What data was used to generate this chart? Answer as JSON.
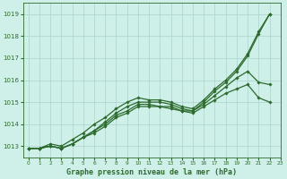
{
  "title": "Graphe pression niveau de la mer (hPa)",
  "bg_color": "#cef0e8",
  "grid_color": "#aad4cc",
  "line_color": "#2d6a2d",
  "xlim": [
    -0.5,
    23
  ],
  "ylim": [
    1012.5,
    1019.5
  ],
  "yticks": [
    1013,
    1014,
    1015,
    1016,
    1017,
    1018,
    1019
  ],
  "xticks": [
    0,
    1,
    2,
    3,
    4,
    5,
    6,
    7,
    8,
    9,
    10,
    11,
    12,
    13,
    14,
    15,
    16,
    17,
    18,
    19,
    20,
    21,
    22,
    23
  ],
  "series": [
    {
      "x": [
        0,
        1,
        2,
        3,
        4,
        5,
        6,
        7,
        8,
        9,
        10,
        11,
        12,
        13,
        14,
        15,
        16,
        17,
        18,
        19,
        20,
        21,
        22
      ],
      "y": [
        1012.9,
        1012.9,
        1013.0,
        1012.9,
        1013.1,
        1013.4,
        1013.7,
        1014.1,
        1014.5,
        1014.8,
        1015.0,
        1015.0,
        1015.0,
        1014.9,
        1014.7,
        1014.6,
        1015.0,
        1015.5,
        1015.9,
        1016.4,
        1017.1,
        1018.1,
        1019.0
      ],
      "lw": 0.9
    },
    {
      "x": [
        0,
        1,
        2,
        3,
        4,
        5,
        6,
        7,
        8,
        9,
        10,
        11,
        12,
        13,
        14,
        15,
        16,
        17,
        18,
        19,
        20,
        21,
        22
      ],
      "y": [
        1012.9,
        1012.9,
        1013.0,
        1012.9,
        1013.1,
        1013.4,
        1013.7,
        1014.0,
        1014.4,
        1014.6,
        1014.9,
        1014.9,
        1014.8,
        1014.8,
        1014.6,
        1014.6,
        1014.9,
        1015.3,
        1015.7,
        1016.1,
        1016.4,
        1015.9,
        1015.8
      ],
      "lw": 0.9
    },
    {
      "x": [
        0,
        1,
        2,
        3,
        4,
        5,
        6,
        7,
        8,
        9,
        10,
        11,
        12,
        13,
        14,
        15,
        16,
        17,
        18,
        19,
        20,
        21,
        22
      ],
      "y": [
        1012.9,
        1012.9,
        1013.0,
        1012.9,
        1013.1,
        1013.4,
        1013.6,
        1013.9,
        1014.3,
        1014.5,
        1014.8,
        1014.8,
        1014.8,
        1014.7,
        1014.6,
        1014.5,
        1014.8,
        1015.1,
        1015.4,
        1015.6,
        1015.8,
        1015.2,
        1015.0
      ],
      "lw": 0.9
    },
    {
      "x": [
        0,
        1,
        2,
        3,
        4,
        5,
        6,
        7,
        8,
        9,
        10,
        11,
        12,
        13,
        14,
        15,
        16,
        17,
        18,
        19,
        20,
        21,
        22
      ],
      "y": [
        1012.9,
        1012.9,
        1013.1,
        1013.0,
        1013.3,
        1013.6,
        1014.0,
        1014.3,
        1014.7,
        1015.0,
        1015.2,
        1015.1,
        1015.1,
        1015.0,
        1014.8,
        1014.7,
        1015.1,
        1015.6,
        1016.0,
        1016.5,
        1017.2,
        1018.2,
        1019.0
      ],
      "lw": 0.9
    }
  ]
}
